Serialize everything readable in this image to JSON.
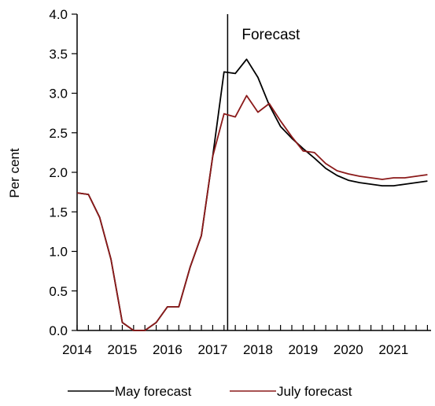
{
  "chart_data": {
    "type": "line",
    "ylabel": "Per cent",
    "xlabel": "",
    "ylim": [
      0,
      4.0
    ],
    "xlim": [
      2014.0,
      2021.83
    ],
    "y_ticks": [
      "0.0",
      "0.5",
      "1.0",
      "1.5",
      "2.0",
      "2.5",
      "3.0",
      "3.5",
      "4.0"
    ],
    "x_ticks": [
      "2014",
      "2015",
      "2016",
      "2017",
      "2018",
      "2019",
      "2020",
      "2021"
    ],
    "annotation": {
      "label": "Forecast",
      "x": 2017.33
    },
    "legend_position": "bottom",
    "series": [
      {
        "name": "May forecast",
        "color": "#000000",
        "x": [
          2014.0,
          2014.25,
          2014.5,
          2014.75,
          2015.0,
          2015.25,
          2015.5,
          2015.75,
          2016.0,
          2016.25,
          2016.5,
          2016.75,
          2017.0,
          2017.25,
          2017.5,
          2017.75,
          2018.0,
          2018.25,
          2018.5,
          2018.75,
          2019.0,
          2019.25,
          2019.5,
          2019.75,
          2020.0,
          2020.25,
          2020.5,
          2020.75,
          2021.0,
          2021.25,
          2021.5,
          2021.75
        ],
        "y": [
          1.74,
          1.72,
          1.43,
          0.9,
          0.1,
          0.0,
          0.0,
          0.1,
          0.3,
          0.3,
          0.8,
          1.2,
          2.2,
          3.27,
          3.25,
          3.43,
          3.2,
          2.85,
          2.58,
          2.43,
          2.3,
          2.18,
          2.05,
          1.96,
          1.9,
          1.87,
          1.85,
          1.83,
          1.83,
          1.85,
          1.87,
          1.89
        ]
      },
      {
        "name": "July forecast",
        "color": "#8B1A1A",
        "x": [
          2014.0,
          2014.25,
          2014.5,
          2014.75,
          2015.0,
          2015.25,
          2015.5,
          2015.75,
          2016.0,
          2016.25,
          2016.5,
          2016.75,
          2017.0,
          2017.25,
          2017.5,
          2017.75,
          2018.0,
          2018.25,
          2018.5,
          2018.75,
          2019.0,
          2019.25,
          2019.5,
          2019.75,
          2020.0,
          2020.25,
          2020.5,
          2020.75,
          2021.0,
          2021.25,
          2021.5,
          2021.75
        ],
        "y": [
          1.74,
          1.72,
          1.43,
          0.9,
          0.1,
          0.0,
          0.0,
          0.1,
          0.3,
          0.3,
          0.8,
          1.2,
          2.2,
          2.74,
          2.7,
          2.97,
          2.76,
          2.87,
          2.65,
          2.45,
          2.27,
          2.25,
          2.11,
          2.02,
          1.98,
          1.95,
          1.93,
          1.91,
          1.93,
          1.93,
          1.95,
          1.97
        ]
      }
    ]
  }
}
